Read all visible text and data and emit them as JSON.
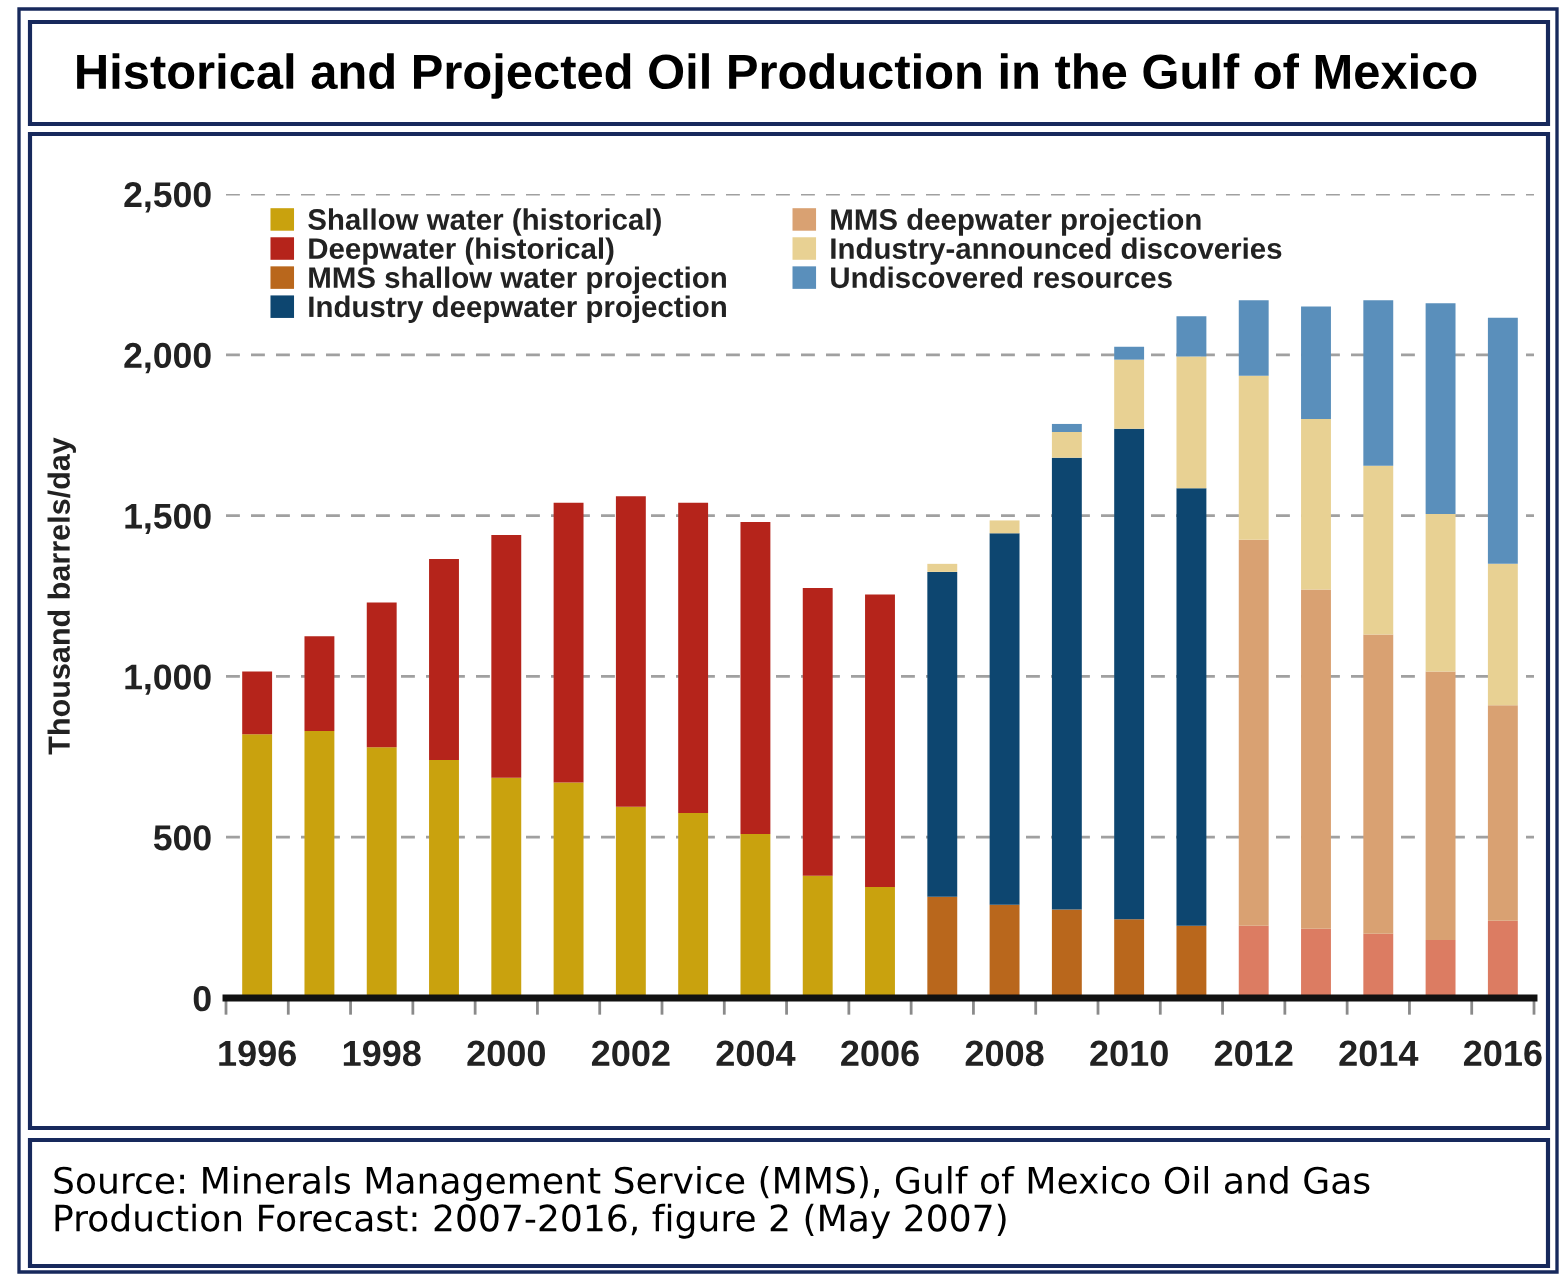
{
  "chart_data": {
    "type": "bar",
    "title": "Historical and Projected Oil Production in the Gulf of Mexico",
    "ylabel": "Thousand barrels/day",
    "annotations": [
      "Source: Minerals Management Service (MMS), Gulf of Mexico Oil and Gas Production Forecast: 2007-2016, figure 2 (May 2007)"
    ],
    "categories": [
      "1996",
      null,
      "1998",
      null,
      "2000",
      null,
      "2002",
      null,
      "2004",
      null,
      "2006",
      null,
      "2008",
      null,
      "2010",
      null,
      "2012",
      null,
      "2014",
      null,
      "2016"
    ],
    "stacked": true,
    "series": [
      {
        "name": "Shallow water (historical)",
        "color": "#c9a20e",
        "values": [
          820,
          830,
          780,
          740,
          685,
          670,
          595,
          575,
          510,
          380,
          345,
          null,
          null,
          null,
          null,
          null,
          null,
          null,
          null,
          null,
          null
        ]
      },
      {
        "name": "Deepwater (historical)",
        "color": "#b5241b",
        "values": [
          195,
          295,
          450,
          625,
          755,
          870,
          965,
          965,
          970,
          895,
          910,
          null,
          null,
          null,
          null,
          null,
          null,
          null,
          null,
          null,
          null
        ]
      },
      {
        "name": "MMS shallow water projection",
        "color": "#b9671c",
        "colors": [
          null,
          null,
          null,
          null,
          null,
          null,
          null,
          null,
          null,
          null,
          null,
          "#b9671c",
          "#b9671c",
          "#b9671c",
          "#b9671c",
          "#b9671c",
          "#dc7c62",
          "#dc7c62",
          "#dc7c62",
          "#dc7c62",
          "#dc7c62"
        ],
        "values": [
          null,
          null,
          null,
          null,
          null,
          null,
          null,
          null,
          null,
          null,
          null,
          315,
          290,
          275,
          245,
          225,
          225,
          215,
          200,
          180,
          240
        ]
      },
      {
        "name": "Industry deepwater projection",
        "color": "#0d4670",
        "values": [
          null,
          null,
          null,
          null,
          null,
          null,
          null,
          null,
          null,
          null,
          null,
          1010,
          1155,
          1405,
          1525,
          1360,
          null,
          null,
          null,
          null,
          null
        ]
      },
      {
        "name": "MMS deepwater projection",
        "color": "#d9a172",
        "values": [
          null,
          null,
          null,
          null,
          null,
          null,
          null,
          null,
          null,
          null,
          null,
          null,
          null,
          null,
          null,
          null,
          1200,
          1055,
          930,
          835,
          670
        ]
      },
      {
        "name": "Industry-announced discoveries",
        "color": "#e8d193",
        "values": [
          null,
          null,
          null,
          null,
          null,
          null,
          null,
          null,
          null,
          null,
          null,
          25,
          40,
          80,
          215,
          410,
          510,
          530,
          525,
          490,
          440
        ]
      },
      {
        "name": "Undiscovered resources",
        "color": "#5a8fbb",
        "values": [
          null,
          null,
          null,
          null,
          null,
          null,
          null,
          null,
          null,
          null,
          null,
          null,
          null,
          25,
          40,
          125,
          235,
          350,
          515,
          655,
          765
        ]
      }
    ],
    "ylim": [
      0,
      2500
    ],
    "yticks": [
      0,
      500,
      {
        "value": 1000,
        "label": "1,000"
      },
      {
        "value": 1500,
        "label": "1,500"
      },
      {
        "value": 2000,
        "label": "2,000"
      },
      {
        "value": 2500,
        "label": "2,500"
      }
    ],
    "grid": "y",
    "legend": "top left"
  }
}
